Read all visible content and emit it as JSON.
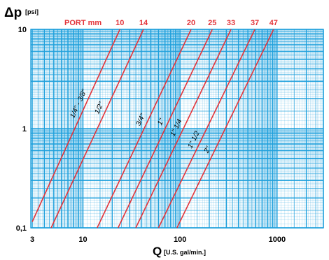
{
  "chart_data": {
    "type": "line",
    "title": "",
    "ylabel": "Δp",
    "ylabel_unit": "[psi]",
    "xlabel": "Q",
    "xlabel_unit": "[U.S. gal/min.]",
    "x_scale": "log",
    "y_scale": "log",
    "xlim": [
      2.9,
      3000
    ],
    "ylim": [
      0.1,
      10
    ],
    "x_ticks": [
      {
        "value": 3,
        "label": "3"
      },
      {
        "value": 10,
        "label": "10"
      },
      {
        "value": 100,
        "label": "100"
      },
      {
        "value": 1000,
        "label": "1000"
      }
    ],
    "y_ticks": [
      {
        "value": 0.1,
        "label": "0,1"
      },
      {
        "value": 1,
        "label": "1"
      },
      {
        "value": 10,
        "label": "10"
      }
    ],
    "grid": true,
    "port_heading": "PORT mm",
    "series": [
      {
        "name": "1/4\" - 3/8\"",
        "port": "10",
        "points": [
          [
            3.0,
            0.115
          ],
          [
            24.0,
            10
          ]
        ]
      },
      {
        "name": "1/2\"",
        "port": "14",
        "points": [
          [
            4.7,
            0.1
          ],
          [
            42.0,
            10
          ]
        ]
      },
      {
        "name": "3/4\"",
        "port": "20",
        "points": [
          [
            14.0,
            0.1
          ],
          [
            130.0,
            10
          ]
        ]
      },
      {
        "name": "1\"",
        "port": "25",
        "points": [
          [
            23.0,
            0.1
          ],
          [
            215.0,
            10
          ]
        ]
      },
      {
        "name": "1\" 1/4",
        "port": "33",
        "points": [
          [
            35.0,
            0.1
          ],
          [
            335.0,
            10
          ]
        ]
      },
      {
        "name": "1\" 1/2",
        "port": "37",
        "points": [
          [
            60.0,
            0.1
          ],
          [
            590.0,
            10
          ]
        ]
      },
      {
        "name": "2\"",
        "port": "47",
        "points": [
          [
            93.0,
            0.1
          ],
          [
            920.0,
            10
          ]
        ]
      }
    ],
    "colors": {
      "grid": "#1fa0dc",
      "line": "#e3343a",
      "plot_bg": "#ffffff"
    }
  }
}
